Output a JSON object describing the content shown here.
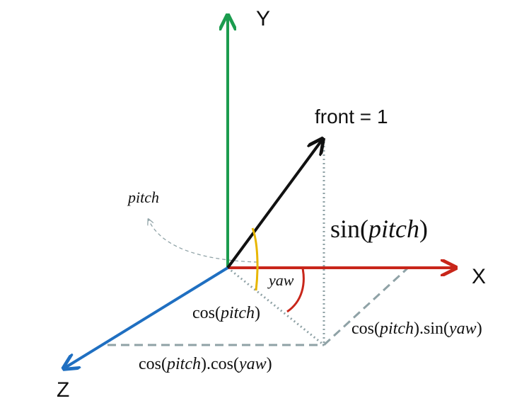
{
  "axes": {
    "x": {
      "label": "X",
      "color": "#c8261a"
    },
    "y": {
      "label": "Y",
      "color": "#1b9c4e"
    },
    "z": {
      "label": "Z",
      "color": "#1f6fc1"
    }
  },
  "front": {
    "label": "front = 1",
    "color": "#111111"
  },
  "colors": {
    "projection_dotted": "#8fa2a6",
    "projection_dashed": "#8fa2a6",
    "pitch_arc": "#e8b600",
    "yaw_arc": "#c8261a"
  },
  "labels": {
    "pitch_rotation": "pitch",
    "yaw_angle": "yaw",
    "sin_pitch": {
      "fn": "sin",
      "open": "(",
      "arg": "pitch",
      "close": ")"
    },
    "cos_pitch": {
      "fn": "cos",
      "open": "(",
      "arg": "pitch",
      "close": ")"
    },
    "cos_pitch_sin_yaw": {
      "fn1": "cos",
      "open1": "(",
      "arg1": "pitch",
      "close1": ")",
      "dot": ".",
      "fn2": "sin",
      "open2": "(",
      "arg2": "yaw",
      "close2": ")"
    },
    "cos_pitch_cos_yaw": {
      "fn1": "cos",
      "open1": "(",
      "arg1": "pitch",
      "close1": ")",
      "dot": ".",
      "fn2": "cos",
      "open2": "(",
      "arg2": "yaw",
      "close2": ")"
    }
  }
}
